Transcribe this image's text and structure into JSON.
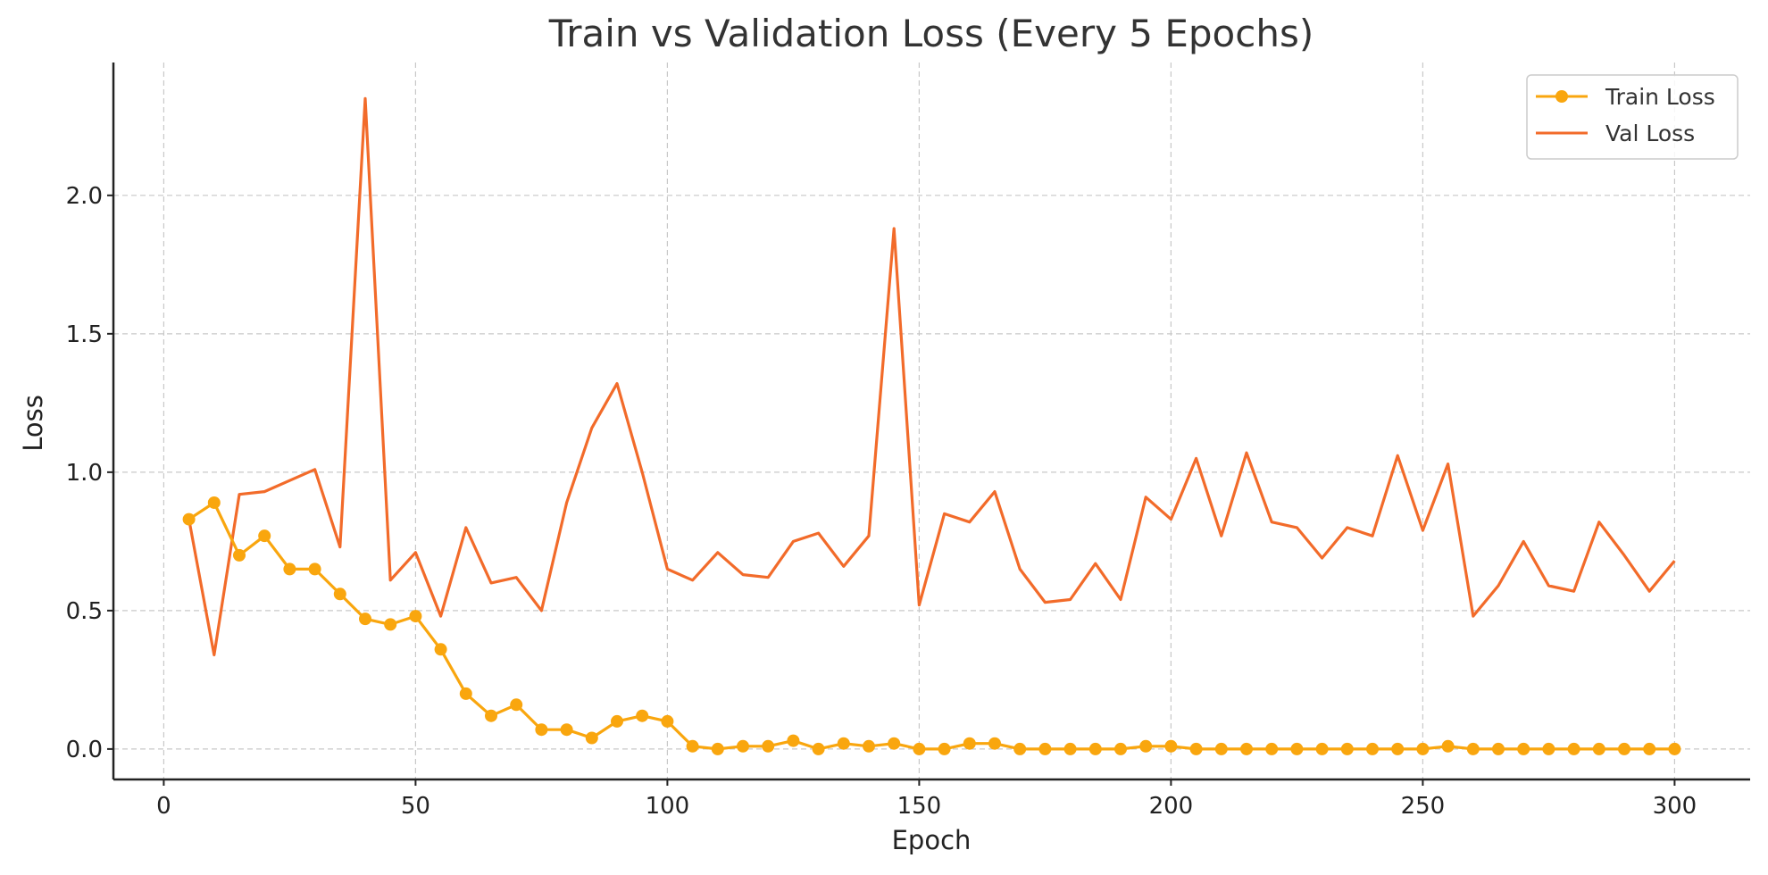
{
  "chart_data": {
    "type": "line",
    "title": "Train vs Validation Loss (Every 5 Epochs)",
    "xlabel": "Epoch",
    "ylabel": "Loss",
    "xlim": [
      -10,
      315
    ],
    "ylim": [
      -0.11,
      2.48
    ],
    "xticks": [
      0,
      50,
      100,
      150,
      200,
      250,
      300
    ],
    "yticks": [
      0.0,
      0.5,
      1.0,
      1.5,
      2.0
    ],
    "ytick_labels": [
      "0.0",
      "0.5",
      "1.0",
      "1.5",
      "2.0"
    ],
    "grid": true,
    "legend_position": "top-right",
    "x": [
      5,
      10,
      15,
      20,
      25,
      30,
      35,
      40,
      45,
      50,
      55,
      60,
      65,
      70,
      75,
      80,
      85,
      90,
      95,
      100,
      105,
      110,
      115,
      120,
      125,
      130,
      135,
      140,
      145,
      150,
      155,
      160,
      165,
      170,
      175,
      180,
      185,
      190,
      195,
      200,
      205,
      210,
      215,
      220,
      225,
      230,
      235,
      240,
      245,
      250,
      255,
      260,
      265,
      270,
      275,
      280,
      285,
      290,
      295,
      300
    ],
    "series": [
      {
        "name": "Train Loss",
        "color": "#F9A60E",
        "marker": "circle",
        "values": [
          0.83,
          0.89,
          0.7,
          0.77,
          0.65,
          0.65,
          0.56,
          0.47,
          0.45,
          0.48,
          0.36,
          0.2,
          0.12,
          0.16,
          0.07,
          0.07,
          0.04,
          0.1,
          0.12,
          0.1,
          0.01,
          0.0,
          0.01,
          0.01,
          0.03,
          0.0,
          0.02,
          0.01,
          0.02,
          0.0,
          0.0,
          0.02,
          0.02,
          0.0,
          0.0,
          0.0,
          0.0,
          0.0,
          0.01,
          0.01,
          0.0,
          0.0,
          0.0,
          0.0,
          0.0,
          0.0,
          0.0,
          0.0,
          0.0,
          0.0,
          0.01,
          0.0,
          0.0,
          0.0,
          0.0,
          0.0,
          0.0,
          0.0,
          0.0,
          0.0
        ]
      },
      {
        "name": "Val Loss",
        "color": "#F26B2A",
        "marker": "none",
        "values": [
          0.83,
          0.34,
          0.92,
          0.93,
          0.97,
          1.01,
          0.73,
          2.35,
          0.61,
          0.71,
          0.48,
          0.8,
          0.6,
          0.62,
          0.5,
          0.89,
          1.16,
          1.32,
          1.0,
          0.65,
          0.61,
          0.71,
          0.63,
          0.62,
          0.75,
          0.78,
          0.66,
          0.77,
          1.88,
          0.52,
          0.85,
          0.82,
          0.93,
          0.65,
          0.53,
          0.54,
          0.67,
          0.54,
          0.91,
          0.83,
          1.05,
          0.77,
          1.07,
          0.82,
          0.8,
          0.69,
          0.8,
          0.77,
          1.06,
          0.79,
          1.03,
          0.48,
          0.59,
          0.75,
          0.59,
          0.57,
          0.82,
          0.7,
          0.57,
          0.68
        ]
      }
    ]
  }
}
